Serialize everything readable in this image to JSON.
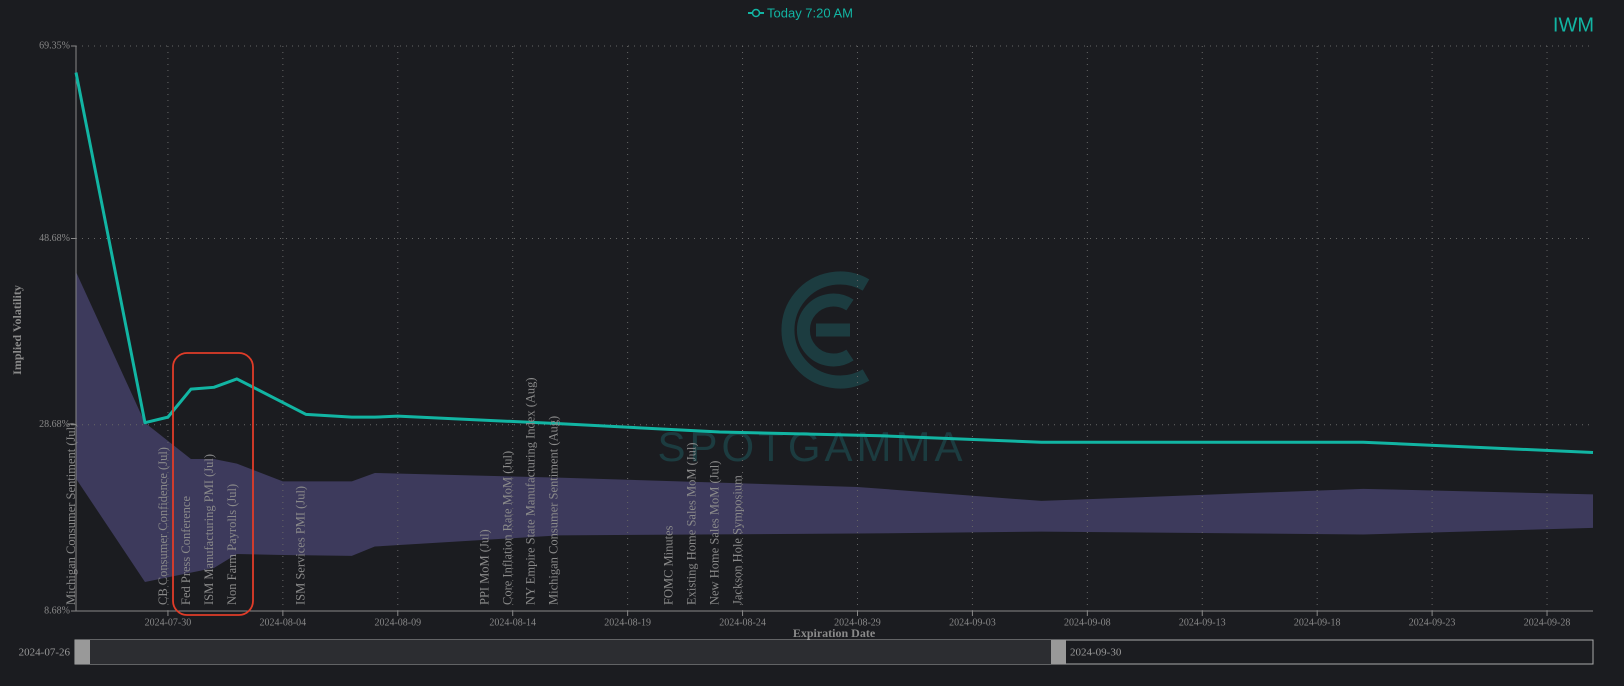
{
  "chart_data": {
    "type": "line",
    "title": "IWM",
    "x_label": "Expiration Date",
    "y_label": "Implied Volatility",
    "watermark": "SPOTGAMMA",
    "xlim": [
      "2024-07-26",
      "2024-09-30"
    ],
    "xticks": [
      "2024-07-30",
      "2024-08-04",
      "2024-08-09",
      "2024-08-14",
      "2024-08-19",
      "2024-08-24",
      "2024-08-29",
      "2024-09-03",
      "2024-09-08",
      "2024-09-13",
      "2024-09-18",
      "2024-09-23",
      "2024-09-28"
    ],
    "ylim": [
      8.68,
      69.35
    ],
    "yticks": [
      {
        "value": 8.68,
        "label": "8.68%"
      },
      {
        "value": 28.68,
        "label": "28.68%"
      },
      {
        "value": 48.68,
        "label": "48.68%"
      },
      {
        "value": 69.35,
        "label": "69.35%"
      }
    ],
    "grid": true,
    "legend": "top",
    "series": [
      {
        "name": "Today 7:20 AM",
        "color": "#12b5a3",
        "x": [
          "2024-07-26",
          "2024-07-29",
          "2024-07-30",
          "2024-07-31",
          "2024-08-01",
          "2024-08-02",
          "2024-08-05",
          "2024-08-07",
          "2024-08-08",
          "2024-08-09",
          "2024-08-16",
          "2024-08-23",
          "2024-08-30",
          "2024-09-06",
          "2024-09-20",
          "2024-09-30"
        ],
        "values": [
          66.5,
          28.9,
          29.5,
          32.5,
          32.7,
          33.6,
          29.8,
          29.5,
          29.5,
          29.6,
          28.8,
          27.9,
          27.5,
          26.8,
          26.8,
          25.7
        ]
      }
    ],
    "band": {
      "color": "#3d3a5c",
      "x": [
        "2024-07-26",
        "2024-07-29",
        "2024-07-31",
        "2024-08-01",
        "2024-08-02",
        "2024-08-04",
        "2024-08-07",
        "2024-08-08",
        "2024-08-16",
        "2024-08-29",
        "2024-09-06",
        "2024-09-20",
        "2024-09-30"
      ],
      "upper": [
        45.1,
        28.9,
        25.0,
        25.0,
        24.5,
        22.6,
        22.6,
        23.5,
        23.0,
        22.0,
        20.5,
        21.8,
        21.2
      ],
      "lower": [
        22.9,
        11.8,
        12.8,
        13.3,
        14.8,
        14.7,
        14.6,
        15.6,
        16.8,
        17.0,
        17.2,
        16.9,
        17.6
      ]
    },
    "events": [
      {
        "date": "2024-07-26",
        "label": "Michigan Consumer Sentiment (Jul)"
      },
      {
        "date": "2024-07-30",
        "label": "CB Consumer Confidence (Jul)"
      },
      {
        "date": "2024-07-31",
        "label": "Fed Press Conference"
      },
      {
        "date": "2024-08-01",
        "label": "ISM Manufacturing PMI (Jul)"
      },
      {
        "date": "2024-08-02",
        "label": "Non Farm Payrolls (Jul)"
      },
      {
        "date": "2024-08-05",
        "label": "ISM Services PMI (Jul)"
      },
      {
        "date": "2024-08-13",
        "label": "PPI MoM (Jul)"
      },
      {
        "date": "2024-08-14",
        "label": "Core Inflation Rate MoM (Jul)"
      },
      {
        "date": "2024-08-15",
        "label": "NY Empire State Manufacturing Index (Aug)"
      },
      {
        "date": "2024-08-16",
        "label": "Michigan Consumer Sentiment (Aug)"
      },
      {
        "date": "2024-08-21",
        "label": "FOMC Minutes"
      },
      {
        "date": "2024-08-22",
        "label": "Existing Home Sales MoM (Jul)"
      },
      {
        "date": "2024-08-23",
        "label": "New Home Sales MoM (Jul)"
      },
      {
        "date": "2024-08-24",
        "label": "Jackson Hole Symposium"
      }
    ]
  }
}
